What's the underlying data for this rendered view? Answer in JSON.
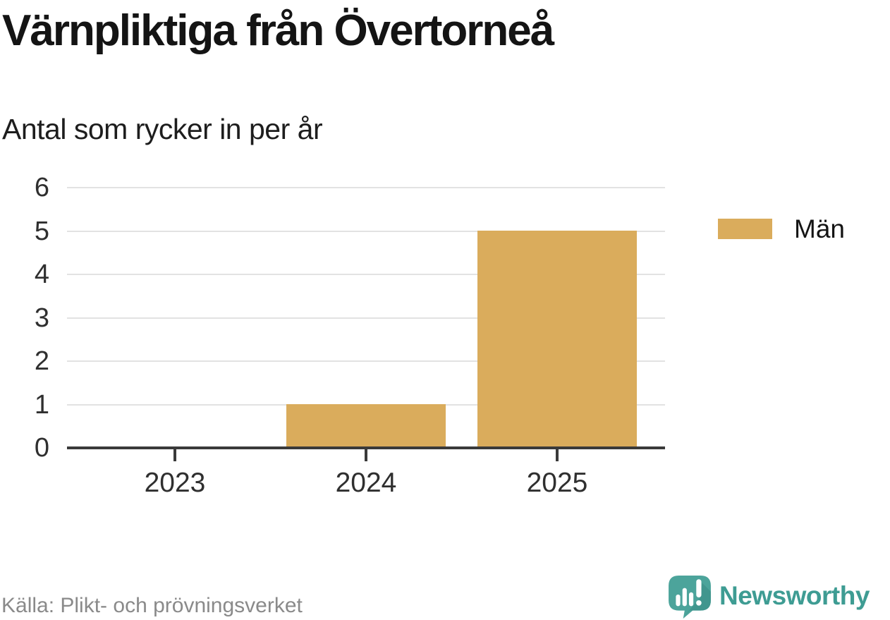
{
  "header": {
    "title": "Värnpliktiga från Övertorneå",
    "subtitle": "Antal som rycker in per år"
  },
  "chart_data": {
    "type": "bar",
    "categories": [
      "2023",
      "2024",
      "2025"
    ],
    "series": [
      {
        "name": "Män",
        "values": [
          0,
          1,
          5
        ]
      }
    ],
    "title": "Värnpliktiga från Övertorneå",
    "subtitle": "Antal som rycker in per år",
    "xlabel": "",
    "ylabel": "",
    "ylim": [
      0,
      6
    ],
    "yticks": [
      0,
      1,
      2,
      3,
      4,
      5,
      6
    ],
    "grid": true,
    "legend_position": "right"
  },
  "legend": {
    "items": [
      {
        "label": "Män",
        "color": "#daac5c"
      }
    ]
  },
  "footer": {
    "source": "Källa: Plikt- och prövningsverket",
    "brand": "Newsworthy"
  },
  "colors": {
    "bar": "#daac5c",
    "axis": "#3a3a3a",
    "grid": "#e2e2e2",
    "tick_text": "#2f2f2f",
    "title_text": "#141414",
    "muted_text": "#8a8a8a",
    "brand_teal": "#3e9c93",
    "brand_icon_teal": "#4ca49b",
    "brand_icon_shadow": "#41968e"
  }
}
